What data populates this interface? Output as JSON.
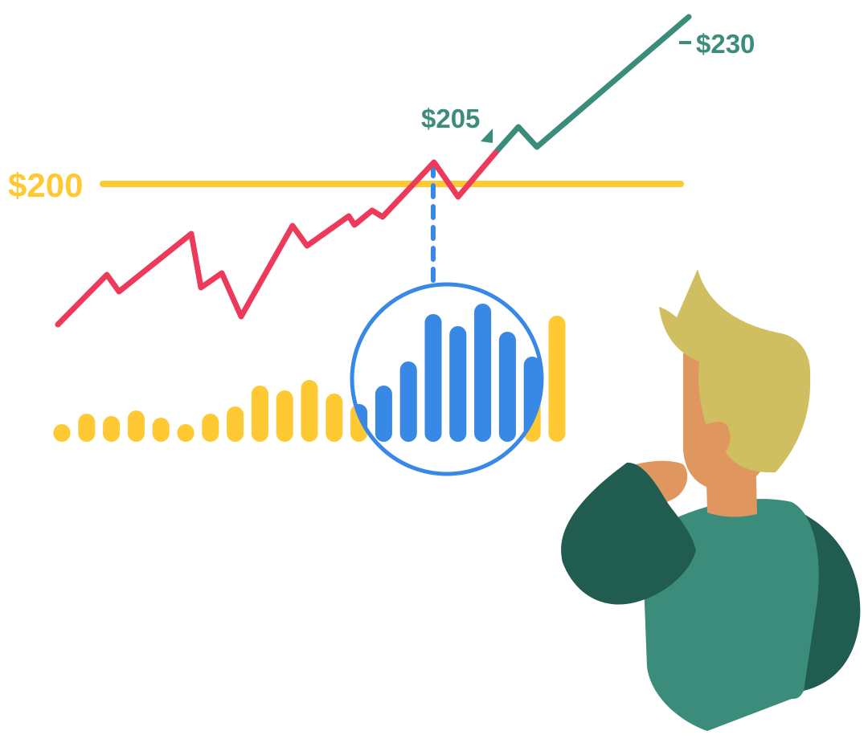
{
  "labels": {
    "threshold": "$200",
    "crossing": "$205",
    "peak": "$230"
  },
  "colors": {
    "threshold": "#FFC933",
    "line_below": "#EE3A5A",
    "line_above": "#3C8C7C",
    "bars": "#FFC933",
    "highlight": "#3888E6",
    "hair": "#CFBF60",
    "skin": "#DF965F",
    "shirt": "#3C8C7C",
    "sleeve": "#215C50"
  },
  "bar_levels": [
    22,
    35,
    32,
    39,
    30,
    22,
    35,
    44,
    70,
    64,
    77,
    60,
    47,
    70,
    100,
    159,
    144,
    172,
    137,
    106,
    157
  ]
}
